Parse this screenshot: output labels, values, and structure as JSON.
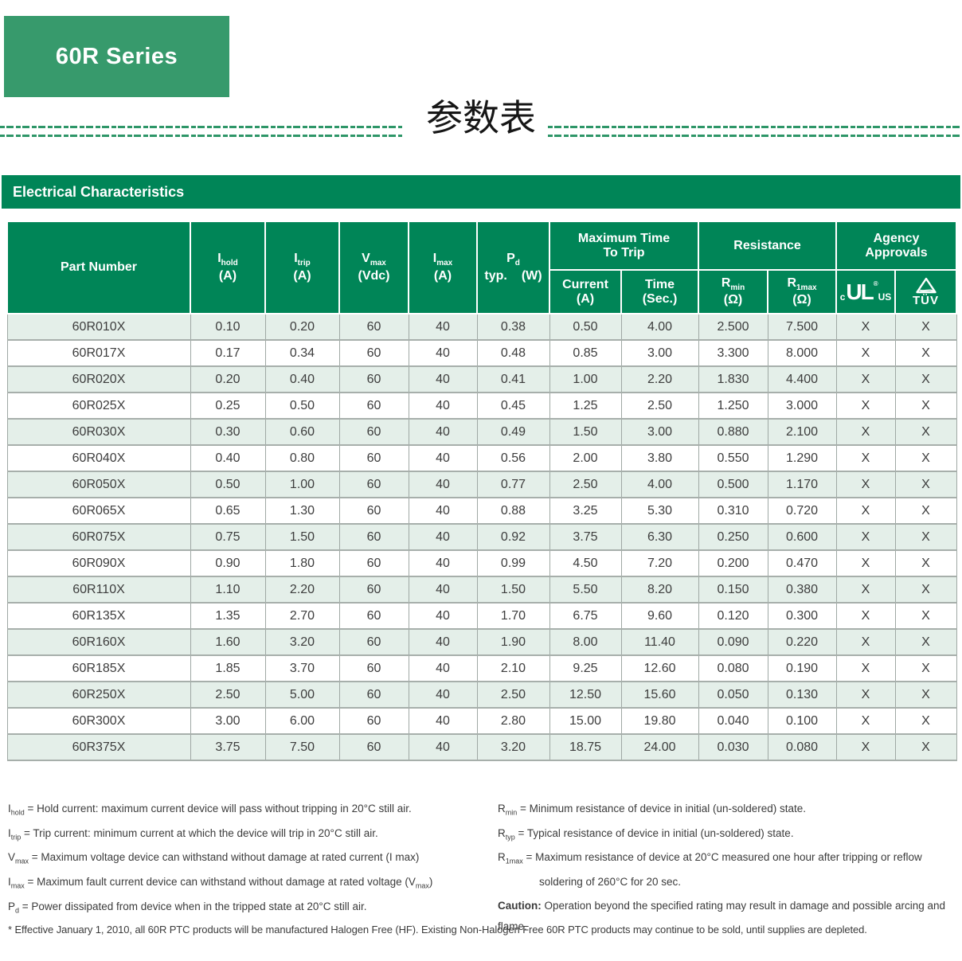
{
  "page": {
    "series_badge": "60R Series",
    "title_cn": "参数表",
    "section_title": "Electrical Characteristics"
  },
  "colors": {
    "brand_green": "#008557",
    "badge_green": "#379a6c",
    "row_stripe_green": "#e4efe9",
    "divider_green": "#2e9668"
  },
  "table": {
    "header": {
      "part_number": "Part Number",
      "i_hold": {
        "sym": "I",
        "sub": "hold",
        "unit": "(A)"
      },
      "i_trip": {
        "sym": "I",
        "sub": "trip",
        "unit": "(A)"
      },
      "v_max": {
        "sym": "V",
        "sub": "max",
        "unit": "(Vdc)"
      },
      "i_max": {
        "sym": "I",
        "sub": "max",
        "unit": "(A)"
      },
      "p_d": {
        "sym": "P",
        "sub": "d",
        "unit_left": "typ.",
        "unit_right": "(W)"
      },
      "max_time_group": {
        "line1": "Maximum Time",
        "line2": "To Trip"
      },
      "current": {
        "line1": "Current",
        "line2": "(A)"
      },
      "time": {
        "line1": "Time",
        "line2": "(Sec.)"
      },
      "resistance_group": "Resistance",
      "r_min": {
        "sym": "R",
        "sub": "min",
        "unit": "(Ω)"
      },
      "r_1max": {
        "sym": "R",
        "sub": "1max",
        "unit": "(Ω)"
      },
      "agency_group": {
        "line1": "Agency",
        "line2": "Approvals"
      },
      "ul_mark": {
        "c": "c",
        "core": "UL",
        "reg": "®",
        "us": "US"
      },
      "tuv_mark": "TÜV"
    },
    "rows": [
      [
        "60R010X",
        "0.10",
        "0.20",
        "60",
        "40",
        "0.38",
        "0.50",
        "4.00",
        "2.500",
        "7.500",
        "X",
        "X"
      ],
      [
        "60R017X",
        "0.17",
        "0.34",
        "60",
        "40",
        "0.48",
        "0.85",
        "3.00",
        "3.300",
        "8.000",
        "X",
        "X"
      ],
      [
        "60R020X",
        "0.20",
        "0.40",
        "60",
        "40",
        "0.41",
        "1.00",
        "2.20",
        "1.830",
        "4.400",
        "X",
        "X"
      ],
      [
        "60R025X",
        "0.25",
        "0.50",
        "60",
        "40",
        "0.45",
        "1.25",
        "2.50",
        "1.250",
        "3.000",
        "X",
        "X"
      ],
      [
        "60R030X",
        "0.30",
        "0.60",
        "60",
        "40",
        "0.49",
        "1.50",
        "3.00",
        "0.880",
        "2.100",
        "X",
        "X"
      ],
      [
        "60R040X",
        "0.40",
        "0.80",
        "60",
        "40",
        "0.56",
        "2.00",
        "3.80",
        "0.550",
        "1.290",
        "X",
        "X"
      ],
      [
        "60R050X",
        "0.50",
        "1.00",
        "60",
        "40",
        "0.77",
        "2.50",
        "4.00",
        "0.500",
        "1.170",
        "X",
        "X"
      ],
      [
        "60R065X",
        "0.65",
        "1.30",
        "60",
        "40",
        "0.88",
        "3.25",
        "5.30",
        "0.310",
        "0.720",
        "X",
        "X"
      ],
      [
        "60R075X",
        "0.75",
        "1.50",
        "60",
        "40",
        "0.92",
        "3.75",
        "6.30",
        "0.250",
        "0.600",
        "X",
        "X"
      ],
      [
        "60R090X",
        "0.90",
        "1.80",
        "60",
        "40",
        "0.99",
        "4.50",
        "7.20",
        "0.200",
        "0.470",
        "X",
        "X"
      ],
      [
        "60R110X",
        "1.10",
        "2.20",
        "60",
        "40",
        "1.50",
        "5.50",
        "8.20",
        "0.150",
        "0.380",
        "X",
        "X"
      ],
      [
        "60R135X",
        "1.35",
        "2.70",
        "60",
        "40",
        "1.70",
        "6.75",
        "9.60",
        "0.120",
        "0.300",
        "X",
        "X"
      ],
      [
        "60R160X",
        "1.60",
        "3.20",
        "60",
        "40",
        "1.90",
        "8.00",
        "11.40",
        "0.090",
        "0.220",
        "X",
        "X"
      ],
      [
        "60R185X",
        "1.85",
        "3.70",
        "60",
        "40",
        "2.10",
        "9.25",
        "12.60",
        "0.080",
        "0.190",
        "X",
        "X"
      ],
      [
        "60R250X",
        "2.50",
        "5.00",
        "60",
        "40",
        "2.50",
        "12.50",
        "15.60",
        "0.050",
        "0.130",
        "X",
        "X"
      ],
      [
        "60R300X",
        "3.00",
        "6.00",
        "60",
        "40",
        "2.80",
        "15.00",
        "19.80",
        "0.040",
        "0.100",
        "X",
        "X"
      ],
      [
        "60R375X",
        "3.75",
        "7.50",
        "60",
        "40",
        "3.20",
        "18.75",
        "24.00",
        "0.030",
        "0.080",
        "X",
        "X"
      ]
    ]
  },
  "footnotes": {
    "left": [
      {
        "segs": [
          {
            "t": "I"
          },
          {
            "s": "hold"
          },
          {
            "t": " = Hold current: maximum current device will pass without tripping in 20°C still air."
          }
        ]
      },
      {
        "segs": [
          {
            "t": "I"
          },
          {
            "s": "trip"
          },
          {
            "t": " = Trip current: minimum current at which the device will trip in 20°C still air."
          }
        ]
      },
      {
        "segs": [
          {
            "t": "V"
          },
          {
            "s": "max"
          },
          {
            "t": " = Maximum voltage device can withstand without damage at rated current (I max)"
          }
        ]
      },
      {
        "segs": [
          {
            "t": "I"
          },
          {
            "s": "max"
          },
          {
            "t": " = Maximum fault current device can withstand without damage at rated voltage (V"
          },
          {
            "s": "max"
          },
          {
            "t": ")"
          }
        ]
      },
      {
        "segs": [
          {
            "t": "P"
          },
          {
            "s": "d"
          },
          {
            "t": " = Power dissipated from device when in the tripped state at 20°C still air."
          }
        ]
      }
    ],
    "right": [
      {
        "segs": [
          {
            "t": "R"
          },
          {
            "s": "min"
          },
          {
            "t": " = Minimum resistance of device in initial (un-soldered) state."
          }
        ]
      },
      {
        "segs": [
          {
            "t": "R"
          },
          {
            "s": "typ"
          },
          {
            "t": " = Typical resistance of device in initial (un-soldered) state."
          }
        ]
      },
      {
        "hang": true,
        "segs": [
          {
            "t": "R"
          },
          {
            "s": "1max"
          },
          {
            "t": " = Maximum resistance of device at 20°C measured one hour after tripping or reflow soldering of 260°C for 20 sec."
          }
        ]
      },
      {
        "caution": true,
        "segs": [
          {
            "b": "Caution:"
          },
          {
            "t": " Operation beyond the specified rating may result in damage and possible arcing and flame."
          }
        ]
      }
    ]
  },
  "bottom_note": "* Effective January 1, 2010, all 60R PTC products will be manufactured Halogen Free (HF). Existing Non-Halogen Free 60R PTC products may continue to be sold, until supplies are depleted."
}
